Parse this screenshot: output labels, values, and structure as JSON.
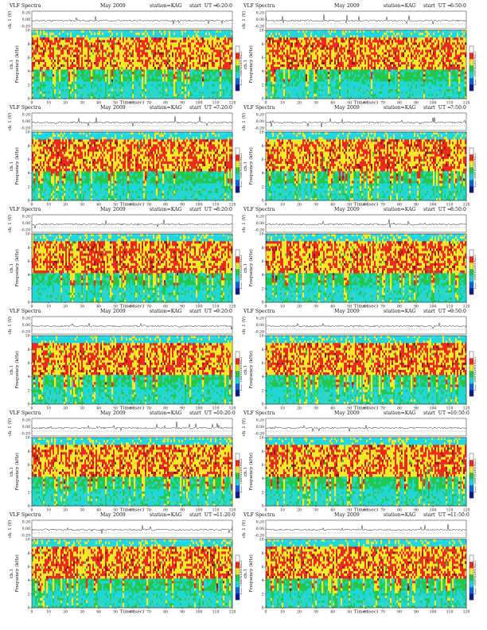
{
  "figure": {
    "kind": "grid of VLF spectrogram panels",
    "rows": 6,
    "cols": 2
  },
  "common": {
    "title": "VLF Spectra",
    "month": "May",
    "date": "2009",
    "station": "station=KAG",
    "start_prefix": "start  UT =",
    "amp_axis_label": "ch. 1 (V)",
    "amp_ticks": [
      "0.20",
      "0.00",
      "-0.20"
    ],
    "freq_axis_label": "ch.1\nFrequency (kHz)",
    "freq_label_line1": "ch.1",
    "freq_label_line2": "Frequency (kHz)",
    "freq_ticks": [
      "0",
      "2",
      "4",
      "6",
      "8",
      "10"
    ],
    "time_ticks": [
      "0",
      "10",
      "20",
      "30",
      "40",
      "50",
      "60",
      "70",
      "80",
      "90",
      "100",
      "110",
      "120"
    ],
    "time_axis_label": "Time (sec)",
    "colorbar_label": "log₁₀(PSD)(V²/Hz)",
    "colorbar_ticks": [
      "",
      "",
      ""
    ],
    "colors": {
      "noise_floor": "#1fd7d9",
      "low": "#25c64a",
      "mid": "#f4ea2a",
      "high": "#ec2a1f",
      "peak": "#8a1b12",
      "band_cap": "#22d6e0",
      "trace": "#111111"
    }
  },
  "chart_data": [
    {
      "type": "heatmap",
      "panel": 1,
      "start_ut": "6:20:0",
      "xlim": [
        0,
        120
      ],
      "ylim": [
        0,
        10
      ],
      "x_label": "Time (sec)",
      "y_label": "Frequency (kHz)"
    },
    {
      "type": "heatmap",
      "panel": 2,
      "start_ut": "6:50:0",
      "xlim": [
        0,
        120
      ],
      "ylim": [
        0,
        10
      ],
      "x_label": "Time (sec)",
      "y_label": "Frequency (kHz)"
    },
    {
      "type": "heatmap",
      "panel": 3,
      "start_ut": "7:20:0",
      "xlim": [
        0,
        120
      ],
      "ylim": [
        0,
        10
      ],
      "x_label": "Time (sec)",
      "y_label": "Frequency (kHz)"
    },
    {
      "type": "heatmap",
      "panel": 4,
      "start_ut": "7:50:0",
      "xlim": [
        0,
        120
      ],
      "ylim": [
        0,
        10
      ],
      "x_label": "Time (sec)",
      "y_label": "Frequency (kHz)"
    },
    {
      "type": "heatmap",
      "panel": 5,
      "start_ut": "8:20:0",
      "xlim": [
        0,
        120
      ],
      "ylim": [
        0,
        10
      ],
      "x_label": "Time (sec)",
      "y_label": "Frequency (kHz)"
    },
    {
      "type": "heatmap",
      "panel": 6,
      "start_ut": "8:50:0",
      "xlim": [
        0,
        120
      ],
      "ylim": [
        0,
        10
      ],
      "x_label": "Time (sec)",
      "y_label": "Frequency (kHz)"
    },
    {
      "type": "heatmap",
      "panel": 7,
      "start_ut": "9:20:0",
      "xlim": [
        0,
        120
      ],
      "ylim": [
        0,
        10
      ],
      "x_label": "Time (sec)",
      "y_label": "Frequency (kHz)"
    },
    {
      "type": "heatmap",
      "panel": 8,
      "start_ut": "9:50:0",
      "xlim": [
        0,
        120
      ],
      "ylim": [
        0,
        10
      ],
      "x_label": "Time (sec)",
      "y_label": "Frequency (kHz)"
    },
    {
      "type": "heatmap",
      "panel": 9,
      "start_ut": "10:20:0",
      "xlim": [
        0,
        120
      ],
      "ylim": [
        0,
        10
      ],
      "x_label": "Time (sec)",
      "y_label": "Frequency (kHz)"
    },
    {
      "type": "heatmap",
      "panel": 10,
      "start_ut": "10:50:0",
      "xlim": [
        0,
        120
      ],
      "ylim": [
        0,
        10
      ],
      "x_label": "Time (sec)",
      "y_label": "Frequency (kHz)"
    },
    {
      "type": "heatmap",
      "panel": 11,
      "start_ut": "11:20:0",
      "xlim": [
        0,
        120
      ],
      "ylim": [
        0,
        10
      ],
      "x_label": "Time (sec)",
      "y_label": "Frequency (kHz)"
    },
    {
      "type": "heatmap",
      "panel": 12,
      "start_ut": "11:50:0",
      "xlim": [
        0,
        120
      ],
      "ylim": [
        0,
        10
      ],
      "x_label": "Time (sec)",
      "y_label": "Frequency (kHz)"
    }
  ]
}
